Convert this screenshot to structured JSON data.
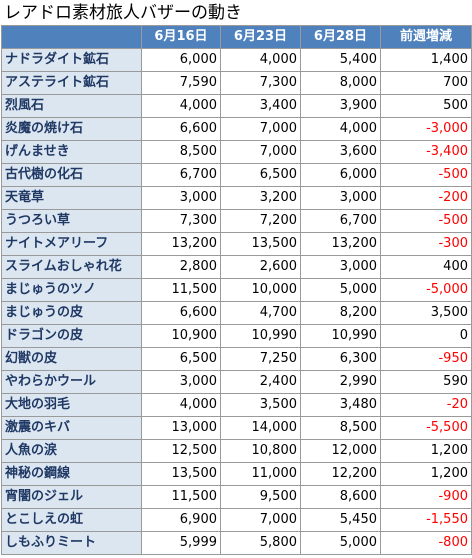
{
  "title": "レアドロ素材旅人バザーの動き",
  "headers": [
    "",
    "6月16日",
    "6月23日",
    "6月28日",
    "前週増減"
  ],
  "rows": [
    {
      "name": "ナドラダイト鉱石",
      "d1": "6,000",
      "d2": "4,000",
      "d3": "5,400",
      "diff": "1,400"
    },
    {
      "name": "アステライト鉱石",
      "d1": "7,590",
      "d2": "7,300",
      "d3": "8,000",
      "diff": "700"
    },
    {
      "name": "烈風石",
      "d1": "4,000",
      "d2": "3,400",
      "d3": "3,900",
      "diff": "500"
    },
    {
      "name": "炎魔の焼け石",
      "d1": "6,600",
      "d2": "7,000",
      "d3": "4,000",
      "diff": "-3,000"
    },
    {
      "name": "げんませき",
      "d1": "8,500",
      "d2": "7,000",
      "d3": "3,600",
      "diff": "-3,400"
    },
    {
      "name": "古代樹の化石",
      "d1": "6,700",
      "d2": "6,500",
      "d3": "6,000",
      "diff": "-500"
    },
    {
      "name": "天竜草",
      "d1": "3,000",
      "d2": "3,200",
      "d3": "3,000",
      "diff": "-200"
    },
    {
      "name": "うつろい草",
      "d1": "7,300",
      "d2": "7,200",
      "d3": "6,700",
      "diff": "-500"
    },
    {
      "name": "ナイトメアリーフ",
      "d1": "13,200",
      "d2": "13,500",
      "d3": "13,200",
      "diff": "-300"
    },
    {
      "name": "スライムおしゃれ花",
      "d1": "2,800",
      "d2": "2,600",
      "d3": "3,000",
      "diff": "400"
    },
    {
      "name": "まじゅうのツノ",
      "d1": "11,500",
      "d2": "10,000",
      "d3": "5,000",
      "diff": "-5,000"
    },
    {
      "name": "まじゅうの皮",
      "d1": "6,600",
      "d2": "4,700",
      "d3": "8,200",
      "diff": "3,500"
    },
    {
      "name": "ドラゴンの皮",
      "d1": "10,900",
      "d2": "10,990",
      "d3": "10,990",
      "diff": "0"
    },
    {
      "name": "幻獣の皮",
      "d1": "6,500",
      "d2": "7,250",
      "d3": "6,300",
      "diff": "-950"
    },
    {
      "name": "やわらかウール",
      "d1": "3,000",
      "d2": "2,400",
      "d3": "2,990",
      "diff": "590"
    },
    {
      "name": "大地の羽毛",
      "d1": "4,000",
      "d2": "3,500",
      "d3": "3,480",
      "diff": "-20"
    },
    {
      "name": "激震のキバ",
      "d1": "13,000",
      "d2": "14,000",
      "d3": "8,500",
      "diff": "-5,500"
    },
    {
      "name": "人魚の涙",
      "d1": "12,500",
      "d2": "10,800",
      "d3": "12,000",
      "diff": "1,200"
    },
    {
      "name": "神秘の鋼線",
      "d1": "13,500",
      "d2": "11,000",
      "d3": "12,200",
      "diff": "1,200"
    },
    {
      "name": "宵闇のジェル",
      "d1": "11,500",
      "d2": "9,500",
      "d3": "8,600",
      "diff": "-900"
    },
    {
      "name": "とこしえの虹",
      "d1": "6,900",
      "d2": "7,000",
      "d3": "5,450",
      "diff": "-1,550"
    },
    {
      "name": "しもふりミート",
      "d1": "5,999",
      "d2": "5,800",
      "d3": "5,000",
      "diff": "-800"
    }
  ],
  "colors": {
    "header_bg": "#4f81bd",
    "name_bg": "#dce6f1",
    "negative": "#ff0000"
  }
}
